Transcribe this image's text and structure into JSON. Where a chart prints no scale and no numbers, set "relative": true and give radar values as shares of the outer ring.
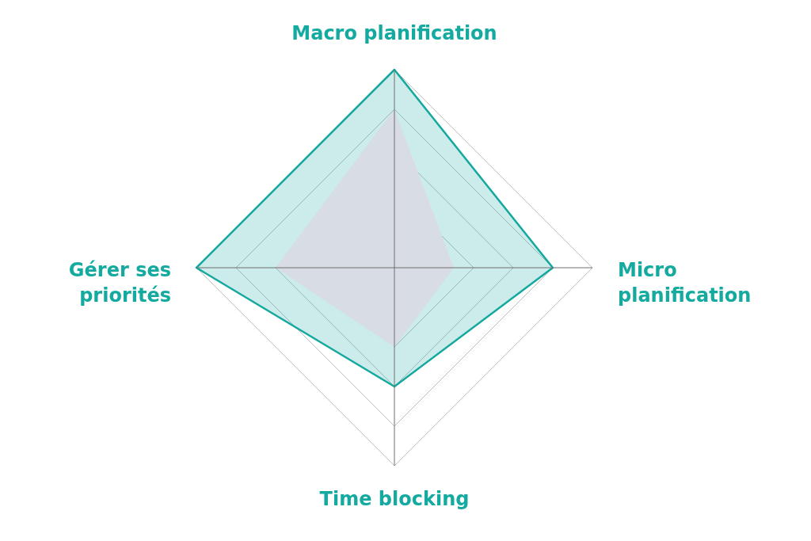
{
  "chart_data": {
    "type": "radar",
    "categories": [
      "Macro planification",
      "Micro planification",
      "Time blocking",
      "Gérer ses priorités"
    ],
    "relative": true,
    "grid": true,
    "series": [
      {
        "color": "#14a89e",
        "values": [
          1,
          0.8,
          0.6,
          1
        ]
      },
      {
        "color": "#d8dce5",
        "values": [
          0.8,
          0.3,
          0.4,
          0.6
        ]
      }
    ]
  }
}
